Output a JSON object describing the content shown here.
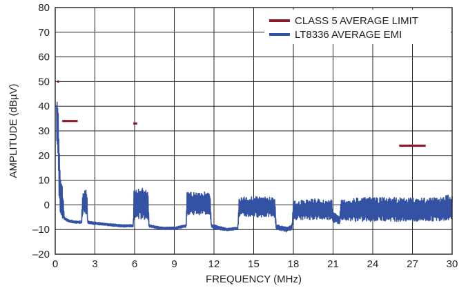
{
  "chart_data": {
    "type": "line",
    "title": "",
    "xlabel": "FREQUENCY (MHz)",
    "ylabel": "AMPLITUDE (dBµV)",
    "xlim": [
      0,
      30
    ],
    "ylim": [
      -20,
      80
    ],
    "x_ticks": [
      0,
      3,
      6,
      9,
      12,
      15,
      18,
      21,
      24,
      27,
      30
    ],
    "y_ticks": [
      -20,
      -10,
      0,
      10,
      20,
      30,
      40,
      50,
      60,
      70,
      80
    ],
    "x_tick_labels": [
      "0",
      "3",
      "6",
      "9",
      "12",
      "15",
      "18",
      "21",
      "24",
      "27",
      "30"
    ],
    "y_tick_labels": [
      "–20",
      "–10",
      "0",
      "10",
      "20",
      "30",
      "40",
      "50",
      "60",
      "70",
      "80"
    ],
    "grid": true,
    "legend_position": "top-right",
    "colors": {
      "limit": "#8b1a2c",
      "emi": "#3452a4",
      "axis": "#231f20"
    },
    "series": [
      {
        "name": "CLASS 5 AVERAGE LIMIT",
        "style": "segments",
        "segments": [
          {
            "x": [
              0.15,
              0.3
            ],
            "y": [
              50,
              50
            ]
          },
          {
            "x": [
              0.53,
              1.7
            ],
            "y": [
              34,
              34
            ]
          },
          {
            "x": [
              5.9,
              6.2
            ],
            "y": [
              33,
              33
            ]
          },
          {
            "x": [
              26.0,
              28.0
            ],
            "y": [
              24,
              24
            ]
          }
        ]
      },
      {
        "name": "LT8336 AVERAGE EMI",
        "style": "envelope",
        "points": [
          {
            "x": 0.1,
            "lo": 22,
            "hi": 43
          },
          {
            "x": 0.15,
            "lo": 25,
            "hi": 42
          },
          {
            "x": 0.2,
            "lo": 20,
            "hi": 41
          },
          {
            "x": 0.25,
            "lo": 8,
            "hi": 35
          },
          {
            "x": 0.3,
            "lo": 0,
            "hi": 24
          },
          {
            "x": 0.4,
            "lo": -4,
            "hi": 12
          },
          {
            "x": 0.5,
            "lo": -5,
            "hi": 10
          },
          {
            "x": 0.6,
            "lo": -6,
            "hi": 3
          },
          {
            "x": 0.7,
            "lo": -6,
            "hi": -5
          },
          {
            "x": 1.0,
            "lo": -7,
            "hi": -6
          },
          {
            "x": 1.5,
            "lo": -7.5,
            "hi": -6.5
          },
          {
            "x": 2.0,
            "lo": -7.5,
            "hi": -6.5
          },
          {
            "x": 2.05,
            "lo": -5,
            "hi": 4
          },
          {
            "x": 2.2,
            "lo": -4,
            "hi": 6
          },
          {
            "x": 2.4,
            "lo": -4,
            "hi": 6
          },
          {
            "x": 2.45,
            "lo": -7.5,
            "hi": -6.5
          },
          {
            "x": 3.0,
            "lo": -8,
            "hi": -7
          },
          {
            "x": 4.0,
            "lo": -8.5,
            "hi": -7.5
          },
          {
            "x": 5.0,
            "lo": -9,
            "hi": -8
          },
          {
            "x": 5.9,
            "lo": -9,
            "hi": -8
          },
          {
            "x": 5.95,
            "lo": -6,
            "hi": 6
          },
          {
            "x": 6.5,
            "lo": -6,
            "hi": 7
          },
          {
            "x": 7.0,
            "lo": -6,
            "hi": 6.5
          },
          {
            "x": 7.1,
            "lo": -9,
            "hi": -8
          },
          {
            "x": 8.0,
            "lo": -10,
            "hi": -9
          },
          {
            "x": 9.0,
            "lo": -10,
            "hi": -9
          },
          {
            "x": 9.9,
            "lo": -9,
            "hi": -8
          },
          {
            "x": 9.95,
            "lo": -4,
            "hi": 5
          },
          {
            "x": 11.0,
            "lo": -4,
            "hi": 5.5
          },
          {
            "x": 11.7,
            "lo": -4,
            "hi": 5
          },
          {
            "x": 11.8,
            "lo": -9,
            "hi": -8
          },
          {
            "x": 12.0,
            "lo": -10,
            "hi": -8
          },
          {
            "x": 13.0,
            "lo": -10.5,
            "hi": -9.5
          },
          {
            "x": 13.8,
            "lo": -10,
            "hi": -9
          },
          {
            "x": 13.9,
            "lo": -5,
            "hi": 3
          },
          {
            "x": 15.0,
            "lo": -5,
            "hi": 3.5
          },
          {
            "x": 16.6,
            "lo": -5,
            "hi": 3
          },
          {
            "x": 16.7,
            "lo": -10,
            "hi": -8
          },
          {
            "x": 17.5,
            "lo": -11,
            "hi": -9
          },
          {
            "x": 17.9,
            "lo": -10,
            "hi": -8
          },
          {
            "x": 18.0,
            "lo": -6,
            "hi": 1.5
          },
          {
            "x": 19.5,
            "lo": -6,
            "hi": 2.5
          },
          {
            "x": 20.9,
            "lo": -6,
            "hi": 2
          },
          {
            "x": 21.0,
            "lo": -7,
            "hi": -3
          },
          {
            "x": 21.5,
            "lo": -8,
            "hi": -4
          },
          {
            "x": 21.6,
            "lo": -6,
            "hi": 2
          },
          {
            "x": 23.0,
            "lo": -7,
            "hi": 3
          },
          {
            "x": 25.0,
            "lo": -6.5,
            "hi": 3
          },
          {
            "x": 27.0,
            "lo": -7,
            "hi": 3
          },
          {
            "x": 29.0,
            "lo": -6.5,
            "hi": 3
          },
          {
            "x": 30.0,
            "lo": -6,
            "hi": 4.5
          }
        ]
      }
    ]
  }
}
